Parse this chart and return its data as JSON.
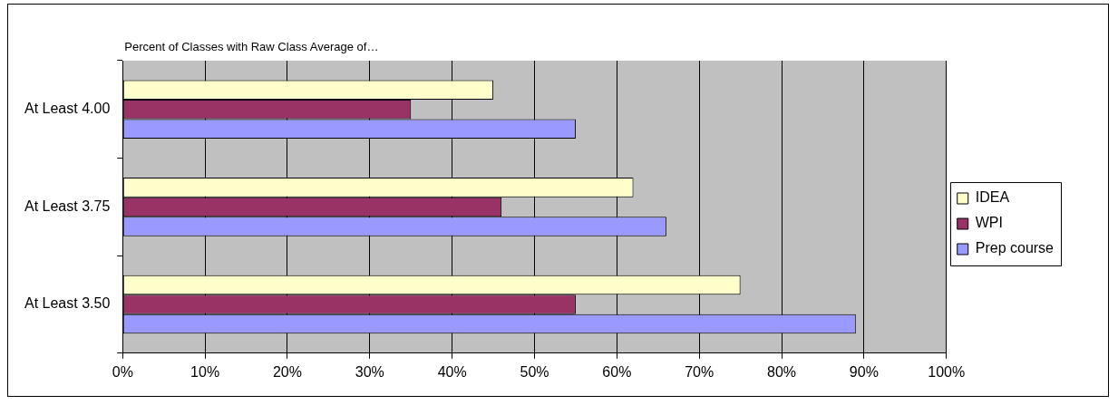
{
  "chart_data": {
    "type": "bar",
    "orientation": "horizontal",
    "title": "Percent of Classes with Raw Class Average of…",
    "categories": [
      "At Least 4.00",
      "At Least 3.75",
      "At Least 3.50"
    ],
    "series": [
      {
        "name": "IDEA",
        "color": "#ffffcc",
        "values": [
          45,
          62,
          75
        ]
      },
      {
        "name": "WPI",
        "color": "#993366",
        "values": [
          35,
          46,
          55
        ]
      },
      {
        "name": "Prep course",
        "color": "#9999ff",
        "values": [
          55,
          66,
          89
        ]
      }
    ],
    "xlim": [
      0,
      100
    ],
    "xticks": [
      {
        "value": 0,
        "label": "0%"
      },
      {
        "value": 10,
        "label": "10%"
      },
      {
        "value": 20,
        "label": "20%"
      },
      {
        "value": 30,
        "label": "30%"
      },
      {
        "value": 40,
        "label": "40%"
      },
      {
        "value": 50,
        "label": "50%"
      },
      {
        "value": 60,
        "label": "60%"
      },
      {
        "value": 70,
        "label": "70%"
      },
      {
        "value": 80,
        "label": "80%"
      },
      {
        "value": 90,
        "label": "90%"
      },
      {
        "value": 100,
        "label": "100%"
      }
    ],
    "grid": "x",
    "legend": "right"
  }
}
